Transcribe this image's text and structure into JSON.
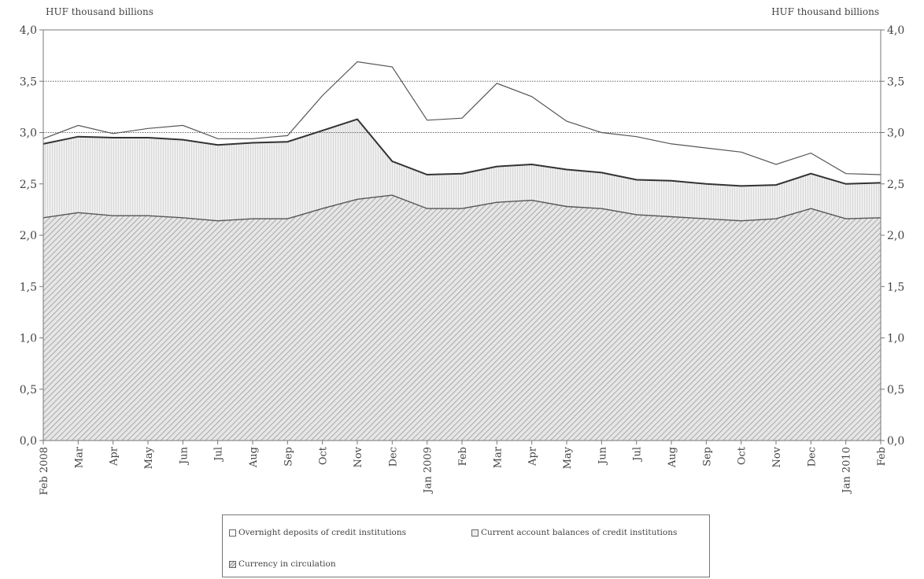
{
  "chart_data": {
    "type": "area",
    "stacked": true,
    "ylabel_left": "HUF thousand billions",
    "ylabel_right": "HUF thousand billions",
    "ylim": [
      0,
      4.0
    ],
    "yticks": [
      "0,0",
      "0,5",
      "1,0",
      "1,5",
      "2,0",
      "2,5",
      "3,0",
      "3,5",
      "4,0"
    ],
    "dashed_gridlines_at": [
      3.0,
      3.5
    ],
    "categories": [
      "Feb 2008",
      "Mar",
      "Apr",
      "May",
      "Jun",
      "Jul",
      "Aug",
      "Sep",
      "Oct",
      "Nov",
      "Dec",
      "Jan 2009",
      "Feb",
      "Mar",
      "Apr",
      "May",
      "Jun",
      "Jul",
      "Aug",
      "Sep",
      "Oct",
      "Nov",
      "Dec",
      "Jan 2010",
      "Feb"
    ],
    "series": [
      {
        "name": "Currency in circulation",
        "values": [
          2.17,
          2.22,
          2.19,
          2.19,
          2.17,
          2.14,
          2.16,
          2.16,
          2.26,
          2.35,
          2.39,
          2.26,
          2.26,
          2.32,
          2.34,
          2.28,
          2.26,
          2.2,
          2.18,
          2.16,
          2.14,
          2.16,
          2.26,
          2.16,
          2.17
        ]
      },
      {
        "name": "Current account balances of credit institutions",
        "values": [
          0.72,
          0.74,
          0.76,
          0.76,
          0.76,
          0.74,
          0.74,
          0.75,
          0.76,
          0.78,
          0.33,
          0.33,
          0.34,
          0.35,
          0.35,
          0.36,
          0.35,
          0.34,
          0.35,
          0.34,
          0.34,
          0.33,
          0.34,
          0.34,
          0.34
        ]
      },
      {
        "name": "Overnight deposits of credit institutions",
        "values": [
          0.05,
          0.11,
          0.04,
          0.09,
          0.14,
          0.06,
          0.04,
          0.06,
          0.34,
          0.56,
          0.92,
          0.53,
          0.54,
          0.81,
          0.66,
          0.47,
          0.39,
          0.42,
          0.36,
          0.35,
          0.33,
          0.2,
          0.2,
          0.1,
          0.08
        ]
      }
    ],
    "totals_line": [
      2.94,
      3.07,
      2.99,
      3.04,
      3.07,
      2.94,
      2.94,
      2.97,
      3.36,
      3.69,
      3.64,
      3.12,
      3.14,
      3.48,
      3.35,
      3.11,
      3.0,
      2.96,
      2.89,
      2.85,
      2.81,
      2.69,
      2.8,
      2.6,
      2.59
    ],
    "legend": {
      "placement": "bottom-center",
      "entries": [
        "Overnight deposits of credit institutions",
        "Current account balances of credit institutions",
        "Currency in circulation"
      ]
    }
  }
}
